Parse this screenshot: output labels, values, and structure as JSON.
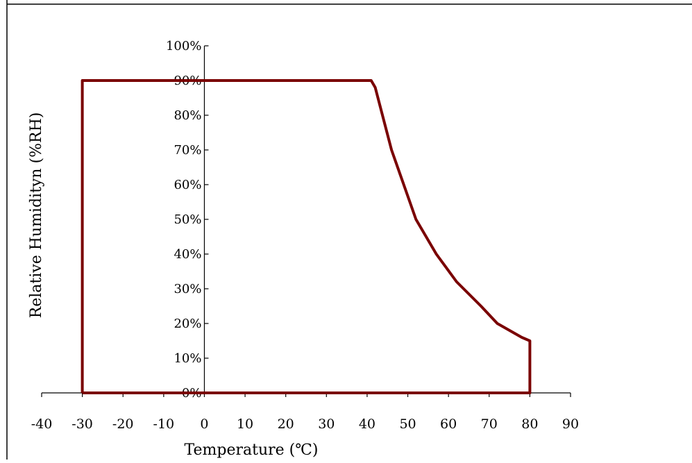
{
  "chart_data": {
    "type": "line",
    "title": "",
    "xlabel": "Temperature (℃)",
    "ylabel": "Relative Humidityn (%RH)",
    "xlim": [
      -40,
      90
    ],
    "ylim": [
      0,
      100
    ],
    "x_ticks": [
      "-40",
      "-30",
      "-20",
      "-10",
      "0",
      "10",
      "20",
      "30",
      "40",
      "50",
      "60",
      "70",
      "80",
      "90"
    ],
    "y_ticks": [
      "0%",
      "10%",
      "20%",
      "30%",
      "40%",
      "50%",
      "60%",
      "70%",
      "80%",
      "90%",
      "100%"
    ],
    "grid": false,
    "line_color": "#7a0000",
    "series": [
      {
        "x": [
          -30,
          -30,
          41,
          42,
          46,
          52,
          57,
          62,
          68,
          72,
          78,
          80,
          80,
          -30
        ],
        "y": [
          0,
          90,
          90,
          88,
          70,
          50,
          40,
          32,
          25,
          20,
          16,
          15,
          0,
          0
        ]
      }
    ]
  }
}
